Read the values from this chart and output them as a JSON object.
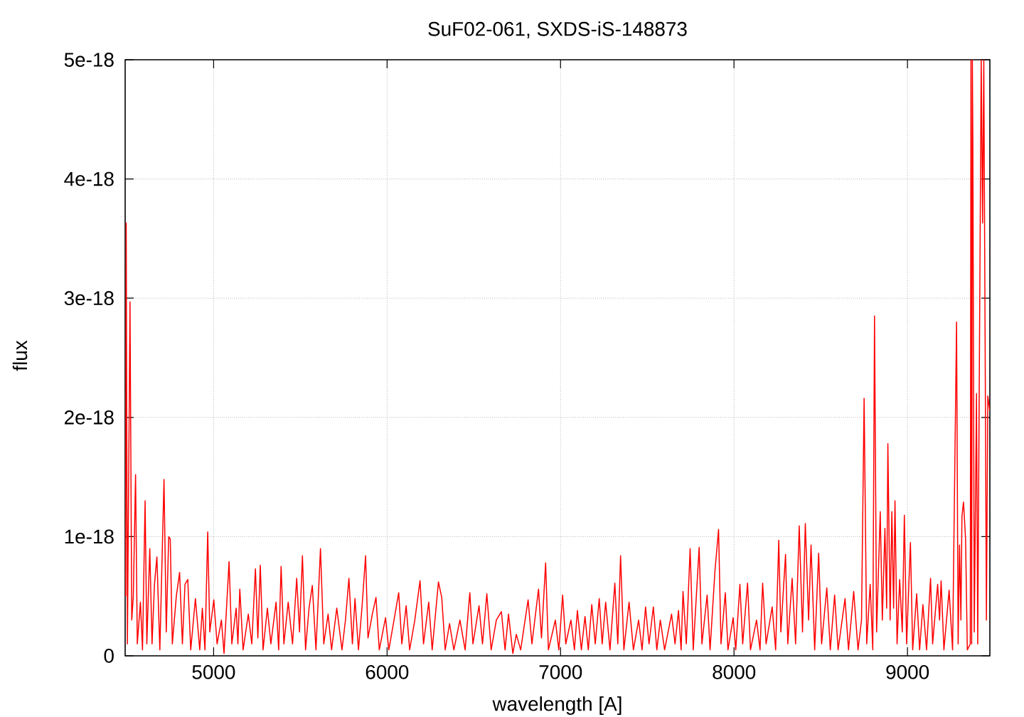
{
  "chart_data": {
    "type": "line",
    "title": "SuF02-061, SXDS-iS-148873",
    "xlabel": "wavelength [A]",
    "ylabel": "flux",
    "x": [
      4493,
      4496,
      4503,
      4518,
      4528,
      4537,
      4550,
      4560,
      4578,
      4590,
      4605,
      4615,
      4632,
      4645,
      4659,
      4673,
      4690,
      4714,
      4727,
      4741,
      4750,
      4762,
      4785,
      4804,
      4820,
      4835,
      4851,
      4868,
      4895,
      4920,
      4935,
      4950,
      4966,
      4978,
      5001,
      5020,
      5045,
      5060,
      5089,
      5105,
      5130,
      5140,
      5151,
      5170,
      5200,
      5220,
      5241,
      5255,
      5269,
      5285,
      5310,
      5330,
      5360,
      5375,
      5389,
      5405,
      5430,
      5455,
      5479,
      5495,
      5512,
      5530,
      5550,
      5569,
      5590,
      5616,
      5635,
      5660,
      5680,
      5710,
      5740,
      5760,
      5780,
      5800,
      5815,
      5835,
      5855,
      5876,
      5890,
      5915,
      5936,
      5955,
      5991,
      6010,
      6040,
      6067,
      6085,
      6110,
      6130,
      6160,
      6190,
      6210,
      6240,
      6260,
      6296,
      6315,
      6335,
      6360,
      6385,
      6420,
      6450,
      6477,
      6495,
      6530,
      6550,
      6575,
      6600,
      6630,
      6659,
      6680,
      6700,
      6725,
      6745,
      6770,
      6813,
      6835,
      6873,
      6890,
      6914,
      6930,
      6970,
      6990,
      7012,
      7030,
      7060,
      7080,
      7097,
      7120,
      7141,
      7160,
      7180,
      7200,
      7223,
      7240,
      7260,
      7285,
      7313,
      7330,
      7346,
      7365,
      7395,
      7420,
      7450,
      7470,
      7490,
      7510,
      7535,
      7555,
      7575,
      7600,
      7640,
      7660,
      7680,
      7695,
      7706,
      7725,
      7747,
      7765,
      7799,
      7815,
      7845,
      7862,
      7890,
      7911,
      7925,
      7950,
      7965,
      7995,
      8010,
      8034,
      8050,
      8078,
      8095,
      8130,
      8150,
      8165,
      8185,
      8220,
      8240,
      8258,
      8270,
      8297,
      8310,
      8335,
      8355,
      8376,
      8395,
      8411,
      8430,
      8444,
      8465,
      8488,
      8505,
      8535,
      8555,
      8580,
      8600,
      8640,
      8660,
      8690,
      8715,
      8735,
      8750,
      8765,
      8785,
      8800,
      8810,
      8822,
      8843,
      8855,
      8870,
      8880,
      8887,
      8900,
      8910,
      8920,
      8928,
      8940,
      8955,
      8970,
      8982,
      8995,
      9017,
      9030,
      9053,
      9070,
      9089,
      9110,
      9133,
      9145,
      9174,
      9185,
      9194,
      9210,
      9240,
      9260,
      9283,
      9292,
      9300,
      9308,
      9314,
      9323,
      9335,
      9345,
      9362,
      9366,
      9370,
      9374,
      9377,
      9385,
      9398,
      9405,
      9425,
      9433,
      9440,
      9455,
      9463,
      9474
    ],
    "values": [
      5e-19,
      3.63e-18,
      1e-19,
      2.97e-18,
      3e-19,
      5e-19,
      1.52e-18,
      1e-19,
      4.5e-19,
      5e-20,
      1.3e-18,
      1e-19,
      9e-19,
      1e-19,
      6e-19,
      8.3e-19,
      5e-20,
      1.48e-18,
      2e-19,
      1e-18,
      9.8e-19,
      1e-19,
      5e-19,
      7e-19,
      1e-19,
      6e-19,
      6.4e-19,
      5e-20,
      4.8e-19,
      5e-20,
      4e-19,
      5e-20,
      1.04e-18,
      2e-19,
      4.7e-19,
      1e-19,
      3e-19,
      2e-20,
      7.9e-19,
      1e-19,
      4e-19,
      1e-19,
      5.6e-19,
      5e-20,
      3.5e-19,
      1e-19,
      7.3e-19,
      1.5e-19,
      7.6e-19,
      5e-20,
      4e-19,
      1e-19,
      4.5e-19,
      5e-20,
      7.5e-19,
      1e-19,
      4.5e-19,
      1e-19,
      6.5e-19,
      2e-19,
      8.4e-19,
      5e-20,
      4e-19,
      5.9e-19,
      5e-20,
      9e-19,
      1e-19,
      3.5e-19,
      5e-20,
      4e-19,
      5e-20,
      3e-19,
      6.5e-19,
      1e-19,
      4.8e-19,
      5e-20,
      4e-19,
      8.4e-19,
      1.5e-19,
      3.5e-19,
      4.9e-19,
      5e-20,
      3.2e-19,
      5e-20,
      3e-19,
      5.3e-19,
      1e-19,
      4.2e-19,
      5e-20,
      3e-19,
      6.3e-19,
      1e-19,
      4.5e-19,
      5e-20,
      6.2e-19,
      4.9e-19,
      5e-20,
      2.7e-19,
      5e-20,
      3e-19,
      5e-20,
      5.3e-19,
      1e-19,
      4.2e-19,
      1e-19,
      5.2e-19,
      5e-20,
      3e-19,
      3.7e-19,
      5e-20,
      3.5e-19,
      2e-20,
      1.8e-19,
      5e-20,
      4.7e-19,
      1e-19,
      5.6e-19,
      1.5e-19,
      7.8e-19,
      5e-20,
      3e-19,
      5e-20,
      5.1e-19,
      1e-19,
      3e-19,
      5e-20,
      3.8e-19,
      5e-20,
      3.3e-19,
      5e-20,
      4.3e-19,
      1e-19,
      4.8e-19,
      1e-19,
      4.5e-19,
      5e-20,
      6.1e-19,
      1e-19,
      8.4e-19,
      5e-20,
      4.5e-19,
      5e-20,
      3e-19,
      5e-20,
      4.1e-19,
      1e-19,
      4.1e-19,
      5e-20,
      3e-19,
      5e-20,
      3.5e-19,
      1e-19,
      3.8e-19,
      5e-20,
      5.4e-19,
      1e-19,
      9e-19,
      5e-20,
      9.1e-19,
      1e-19,
      5.1e-19,
      5e-20,
      7.1e-19,
      1.06e-18,
      1e-19,
      5.3e-19,
      5e-20,
      3.2e-19,
      5e-20,
      6e-19,
      1e-19,
      6.1e-19,
      5e-20,
      3e-19,
      5e-20,
      6.1e-19,
      1e-19,
      4.1e-19,
      5e-20,
      9.7e-19,
      2e-19,
      8.5e-19,
      1e-19,
      6.5e-19,
      1e-19,
      1.09e-18,
      2e-19,
      1.11e-18,
      3e-19,
      9.3e-19,
      5e-20,
      8.6e-19,
      1e-19,
      5.7e-19,
      5e-20,
      5.1e-19,
      5e-20,
      4.8e-19,
      5e-20,
      5.4e-19,
      5e-20,
      3e-19,
      2.16e-18,
      1e-19,
      6e-19,
      5e-20,
      2.85e-18,
      2e-19,
      1.21e-18,
      3e-19,
      1.07e-18,
      4e-19,
      1.78e-18,
      3e-19,
      1.21e-18,
      4e-19,
      1.3e-18,
      1e-19,
      6.4e-19,
      2e-19,
      1.18e-18,
      1e-19,
      9.5e-19,
      5e-20,
      5.2e-19,
      5e-20,
      4.3e-19,
      5e-20,
      6.5e-19,
      1e-19,
      6e-19,
      3e-19,
      6.3e-19,
      5e-20,
      5.5e-19,
      5e-20,
      2.8e-18,
      1e-19,
      9.3e-19,
      3e-19,
      1.17e-18,
      1.29e-18,
      9.8e-19,
      5e-20,
      1e-19,
      5e-18,
      1e-19,
      5e-18,
      4.29e-18,
      2e-19,
      2.2e-18,
      1e-19,
      5e-18,
      3.63e-18,
      5e-18,
      3e-19,
      2.18e-18,
      2.06e-18
    ],
    "color": "#ff0000",
    "xlim": [
      4490,
      9475
    ],
    "ylim": [
      0,
      5e-18
    ],
    "xticks": [
      5000,
      6000,
      7000,
      8000,
      9000
    ],
    "yticks": [
      0,
      {
        "value": 1e-18,
        "label": "1e-18"
      },
      {
        "value": 2e-18,
        "label": "2e-18"
      },
      {
        "value": 3e-18,
        "label": "3e-18"
      },
      {
        "value": 4e-18,
        "label": "4e-18"
      },
      {
        "value": 5e-18,
        "label": "5e-18"
      }
    ],
    "grid": true
  }
}
